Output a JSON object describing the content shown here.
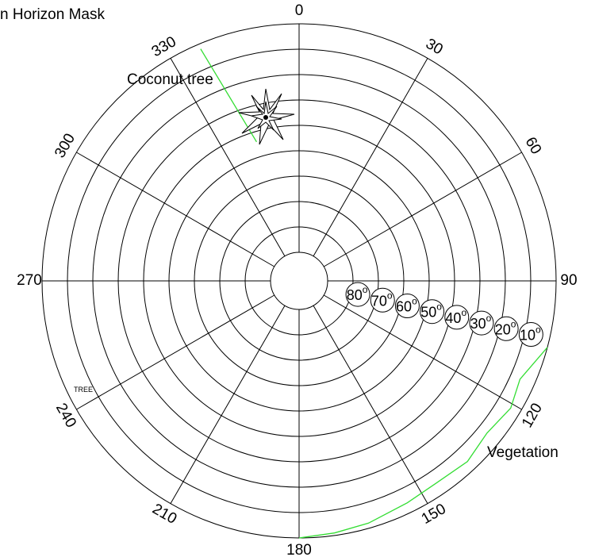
{
  "title": "n Horizon Mask",
  "azimuth_labels": [
    "0",
    "30",
    "60",
    "90",
    "120",
    "150",
    "180",
    "210",
    "240",
    "270",
    "300",
    "330"
  ],
  "elevation_labels": [
    {
      "text": "80",
      "sup": "o"
    },
    {
      "text": "70",
      "sup": "o"
    },
    {
      "text": "60",
      "sup": "o"
    },
    {
      "text": "50",
      "sup": "o"
    },
    {
      "text": "40",
      "sup": "o"
    },
    {
      "text": "30",
      "sup": "o"
    },
    {
      "text": "20",
      "sup": "o"
    },
    {
      "text": "10",
      "sup": "o"
    }
  ],
  "annotations": {
    "coconut_tree": "Coconut tree",
    "vegetation": "Vegetation",
    "tree": "TREE"
  },
  "colors": {
    "grid": "#000000",
    "horizon_line": "#33dd33",
    "background": "#ffffff"
  },
  "obstructions": {
    "tree_branch": [
      {
        "az": 337,
        "el": 2
      },
      {
        "az": 343,
        "el": 44
      }
    ],
    "vegetation": [
      {
        "az": 105,
        "el": 0
      },
      {
        "az": 114,
        "el": 6
      },
      {
        "az": 121,
        "el": 4
      },
      {
        "az": 129,
        "el": 6
      },
      {
        "az": 137,
        "el": 4
      },
      {
        "az": 146,
        "el": 5
      },
      {
        "az": 154,
        "el": 4
      },
      {
        "az": 164,
        "el": 2
      },
      {
        "az": 172,
        "el": 1
      },
      {
        "az": 180,
        "el": 0
      }
    ]
  }
}
